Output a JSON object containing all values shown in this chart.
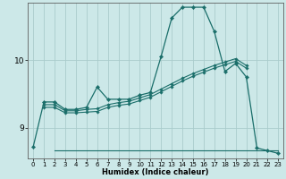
{
  "xlabel": "Humidex (Indice chaleur)",
  "background_color": "#cce8e8",
  "grid_color": "#aacccc",
  "line_color": "#1a6e6a",
  "xlim": [
    -0.5,
    23.5
  ],
  "ylim": [
    8.55,
    10.85
  ],
  "yticks": [
    9,
    10
  ],
  "xticks": [
    0,
    1,
    2,
    3,
    4,
    5,
    6,
    7,
    8,
    9,
    10,
    11,
    12,
    13,
    14,
    15,
    16,
    17,
    18,
    19,
    20,
    21,
    22,
    23
  ],
  "series": [
    {
      "x": [
        0,
        1,
        2,
        3,
        4,
        5,
        6,
        7,
        8,
        9,
        10,
        11,
        12,
        13,
        14,
        15,
        16,
        17,
        18,
        19,
        20,
        21,
        22,
        23
      ],
      "y": [
        8.72,
        9.38,
        9.38,
        9.27,
        9.27,
        9.3,
        9.6,
        9.42,
        9.42,
        9.42,
        9.48,
        9.52,
        10.05,
        10.62,
        10.78,
        10.78,
        10.78,
        10.42,
        9.83,
        9.95,
        9.75,
        8.7,
        8.66,
        8.62
      ]
    },
    {
      "x": [
        1,
        2,
        3,
        4,
        5,
        6,
        7,
        8,
        9,
        10,
        11,
        12,
        13,
        14,
        15,
        16,
        17,
        18,
        19,
        20
      ],
      "y": [
        9.34,
        9.34,
        9.25,
        9.25,
        9.27,
        9.28,
        9.34,
        9.37,
        9.39,
        9.44,
        9.49,
        9.57,
        9.65,
        9.73,
        9.8,
        9.86,
        9.92,
        9.97,
        10.02,
        9.92
      ]
    },
    {
      "x": [
        1,
        2,
        3,
        4,
        5,
        6,
        7,
        8,
        9,
        10,
        11,
        12,
        13,
        14,
        15,
        16,
        17,
        18,
        19,
        20
      ],
      "y": [
        9.3,
        9.3,
        9.22,
        9.22,
        9.23,
        9.24,
        9.3,
        9.33,
        9.35,
        9.4,
        9.45,
        9.53,
        9.61,
        9.69,
        9.76,
        9.82,
        9.88,
        9.93,
        9.98,
        9.88
      ]
    },
    {
      "x": [
        2,
        3,
        4,
        5,
        6,
        7,
        8,
        9,
        10,
        11,
        12,
        13,
        14,
        15,
        16,
        17,
        18,
        19,
        20,
        21,
        22,
        23
      ],
      "y": [
        8.67,
        8.67,
        8.67,
        8.67,
        8.67,
        8.67,
        8.67,
        8.67,
        8.67,
        8.67,
        8.67,
        8.67,
        8.67,
        8.67,
        8.67,
        8.67,
        8.67,
        8.67,
        8.67,
        8.67,
        8.67,
        8.67
      ]
    }
  ]
}
